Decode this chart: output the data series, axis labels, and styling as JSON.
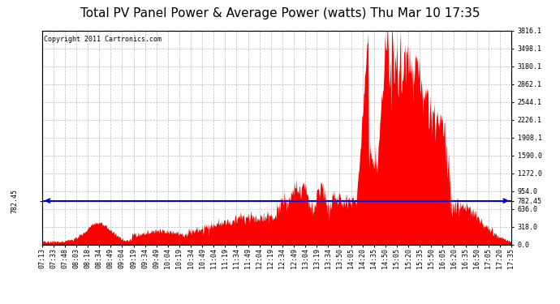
{
  "title": "Total PV Panel Power & Average Power (watts) Thu Mar 10 17:35",
  "copyright": "Copyright 2011 Cartronics.com",
  "y_max": 3816.1,
  "y_min": 0.0,
  "avg_power": 782.45,
  "right_ytick_labels": [
    "0.0",
    "318.0",
    "636.0",
    "954.0",
    "1272.0",
    "1590.0",
    "1908.1",
    "2226.1",
    "2544.1",
    "2862.1",
    "3180.1",
    "3498.1",
    "3816.1"
  ],
  "right_ytick_values": [
    0.0,
    318.0,
    636.0,
    954.0,
    1272.0,
    1590.0,
    1908.1,
    2226.1,
    2544.1,
    2862.1,
    3180.1,
    3498.1,
    3816.1
  ],
  "avg_label": "782.45",
  "fill_color": "#ff0000",
  "line_color": "#0000dd",
  "bg_color": "#ffffff",
  "grid_color": "#bbbbbb",
  "title_fontsize": 11,
  "copyright_fontsize": 6,
  "tick_fontsize": 6,
  "x_tick_labels": [
    "07:13",
    "07:33",
    "07:48",
    "08:03",
    "08:18",
    "08:34",
    "08:49",
    "09:04",
    "09:19",
    "09:34",
    "09:49",
    "10:04",
    "10:19",
    "10:34",
    "10:49",
    "11:04",
    "11:19",
    "11:34",
    "11:49",
    "12:04",
    "12:19",
    "12:34",
    "12:49",
    "13:04",
    "13:19",
    "13:34",
    "13:50",
    "14:05",
    "14:20",
    "14:35",
    "14:50",
    "15:05",
    "15:20",
    "15:35",
    "15:50",
    "16:05",
    "16:20",
    "16:35",
    "16:50",
    "17:05",
    "17:20",
    "17:35"
  ],
  "n_ticks": 42
}
